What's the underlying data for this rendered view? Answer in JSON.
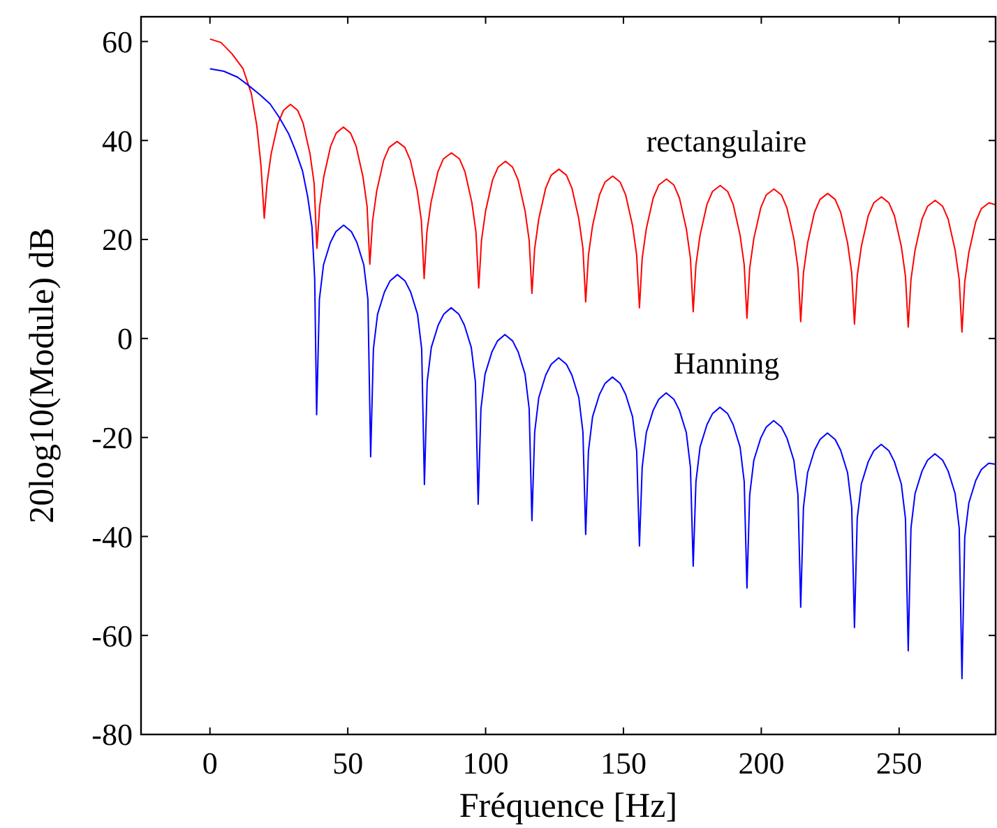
{
  "chart_data": {
    "type": "line",
    "xlabel": "Fréquence [Hz]",
    "ylabel": "20log10(Module) dB",
    "xlim": [
      -25,
      285
    ],
    "xticks": [
      0,
      50,
      100,
      150,
      200,
      250
    ],
    "ylim": [
      -80,
      65
    ],
    "yticks": [
      -80,
      -60,
      -40,
      -20,
      0,
      20,
      40,
      60
    ],
    "grid": false,
    "series": [
      {
        "name": "rectangulaire",
        "color": "#ff0000",
        "x": [
          0,
          4,
          8,
          12,
          15,
          17,
          18.5,
          19.7,
          20.7,
          22.2,
          24.7,
          26.7,
          29.2,
          31.8,
          33.8,
          36.3,
          37.8,
          38.8,
          39.8,
          41.3,
          43.8,
          45.8,
          48.4,
          51,
          53,
          55.5,
          57,
          58,
          59,
          60.5,
          63,
          65,
          67.9,
          70.7,
          72.7,
          75.2,
          76.7,
          77.7,
          78.7,
          80.2,
          82.7,
          84.7,
          87.6,
          90.5,
          92.5,
          95,
          96.5,
          97.5,
          98.5,
          100,
          102.5,
          104.5,
          107.2,
          109.8,
          111.8,
          114.3,
          115.8,
          116.8,
          117.8,
          119.3,
          121.8,
          123.8,
          126.6,
          129.3,
          131.3,
          133.8,
          135.3,
          136.3,
          137.3,
          138.8,
          141.3,
          143.3,
          146.1,
          148.8,
          150.8,
          153.3,
          154.8,
          155.8,
          156.8,
          158.3,
          160.8,
          162.8,
          165.6,
          168.3,
          170.3,
          172.8,
          174.3,
          175.3,
          176.3,
          177.8,
          180.3,
          182.3,
          185.1,
          187.8,
          189.8,
          192.3,
          193.8,
          194.8,
          195.8,
          197.3,
          199.8,
          201.8,
          204.6,
          207.3,
          209.3,
          211.8,
          213.3,
          214.3,
          215.3,
          216.8,
          219.3,
          221.3,
          224.1,
          226.8,
          228.8,
          231.3,
          232.8,
          233.8,
          234.8,
          236.3,
          238.8,
          240.8,
          243.6,
          246.3,
          248.3,
          250.8,
          252.3,
          253.3,
          254.3,
          255.8,
          258.3,
          260.3,
          263.1,
          265.8,
          267.8,
          270.3,
          271.8,
          272.8,
          273.8,
          275.3,
          277.8,
          279.8,
          282.6,
          285
        ],
        "values": [
          60.5,
          59.8,
          57.5,
          54.5,
          49.5,
          43,
          35,
          24.3,
          31.3,
          37.3,
          43.5,
          46.1,
          47.3,
          46.1,
          43.5,
          37.3,
          31.3,
          18.2,
          26.7,
          32.7,
          38.9,
          41.5,
          42.7,
          41.5,
          38.9,
          32.7,
          26.7,
          15,
          23.8,
          29.8,
          36,
          38.6,
          39.8,
          38.6,
          36,
          29.8,
          23.8,
          12.1,
          21.5,
          27.5,
          33.7,
          36.3,
          37.5,
          36.3,
          33.7,
          27.5,
          21.5,
          10.2,
          19.8,
          25.8,
          32,
          34.6,
          35.8,
          34.6,
          32,
          25.8,
          19.8,
          9.1,
          18.2,
          24.2,
          30.4,
          33,
          34.2,
          33,
          30.4,
          24.2,
          18.2,
          7.4,
          16.8,
          22.8,
          29,
          31.6,
          32.8,
          31.6,
          29,
          22.8,
          16.8,
          6.2,
          16.2,
          22.2,
          28.4,
          31,
          32.2,
          31,
          28.4,
          22.2,
          16.2,
          5.4,
          14.9,
          20.9,
          27.1,
          29.7,
          30.9,
          29.7,
          27.1,
          20.9,
          14.9,
          4.1,
          14.2,
          20.2,
          26.4,
          29,
          30.2,
          29,
          26.4,
          20.2,
          14.2,
          3.4,
          13.3,
          19.3,
          25.5,
          28.1,
          29.3,
          28.1,
          25.5,
          19.3,
          13.3,
          2.9,
          12.6,
          18.6,
          24.8,
          27.4,
          28.6,
          27.4,
          24.8,
          18.6,
          12.6,
          2.3,
          11.9,
          17.9,
          24.1,
          26.7,
          27.9,
          26.7,
          24.1,
          17.9,
          11.9,
          1.3,
          11.4,
          17.4,
          23.6,
          26.2,
          27.4,
          27
        ]
      },
      {
        "name": "Hanning",
        "color": "#0000ff",
        "x": [
          0,
          5,
          10,
          13.6,
          18,
          21.8,
          25,
          28.6,
          31,
          33.6,
          35.5,
          37,
          38,
          38.7,
          39.7,
          41.2,
          43.7,
          45.7,
          48.5,
          51.3,
          53.3,
          55.8,
          57.3,
          58.3,
          59.3,
          60.8,
          63.3,
          65.3,
          68,
          70.8,
          72.8,
          75.3,
          76.8,
          77.8,
          78.8,
          80.3,
          82.8,
          84.8,
          87.5,
          90.3,
          92.3,
          94.8,
          96.3,
          97.3,
          98.3,
          99.8,
          102.3,
          104.3,
          107,
          109.8,
          111.8,
          114.3,
          115.8,
          116.8,
          117.8,
          119.3,
          121.8,
          123.8,
          126.5,
          129.3,
          131.3,
          133.8,
          135.3,
          136.3,
          137.3,
          138.8,
          141.3,
          143.3,
          146,
          148.8,
          150.8,
          153.3,
          154.8,
          155.8,
          156.8,
          158.3,
          160.8,
          162.8,
          165.5,
          168.3,
          170.3,
          172.8,
          174.3,
          175.3,
          176.3,
          177.8,
          180.3,
          182.3,
          185,
          187.8,
          189.8,
          192.3,
          193.8,
          194.8,
          195.8,
          197.3,
          199.8,
          201.8,
          204.5,
          207.3,
          209.3,
          211.8,
          213.3,
          214.3,
          215.3,
          216.8,
          219.3,
          221.3,
          224,
          226.8,
          228.8,
          231.3,
          232.8,
          233.8,
          234.8,
          236.3,
          238.8,
          240.8,
          243.5,
          246.3,
          248.3,
          250.8,
          252.3,
          253.3,
          254.3,
          255.8,
          258.3,
          260.3,
          263,
          265.8,
          267.8,
          270.3,
          271.8,
          272.8,
          273.8,
          275.3,
          277.8,
          279.8,
          282.5,
          285
        ],
        "values": [
          54.5,
          54,
          52.8,
          51.3,
          49.3,
          47.4,
          44.8,
          41.3,
          38,
          33.8,
          28.5,
          22.6,
          12,
          -15.4,
          7.9,
          14.9,
          19.4,
          21.6,
          22.9,
          21.6,
          19.4,
          14.9,
          7.9,
          -23.9,
          -2.1,
          4.9,
          9.4,
          11.6,
          12.9,
          11.6,
          9.4,
          4.9,
          -2.1,
          -29.5,
          -8.8,
          -1.8,
          2.7,
          4.9,
          6.2,
          4.9,
          2.7,
          -1.8,
          -8.8,
          -33.5,
          -14.2,
          -7.2,
          -2.7,
          -0.5,
          0.8,
          -0.5,
          -2.7,
          -7.2,
          -14.2,
          -36.8,
          -18.9,
          -11.9,
          -7.4,
          -5.2,
          -3.9,
          -5.2,
          -7.4,
          -11.9,
          -18.9,
          -39.6,
          -22.8,
          -15.8,
          -11.3,
          -9.1,
          -7.8,
          -9.1,
          -11.3,
          -15.8,
          -22.8,
          -41.9,
          -26,
          -19,
          -14.5,
          -12.3,
          -11,
          -12.3,
          -14.5,
          -19,
          -26,
          -46,
          -28.9,
          -21.9,
          -17.4,
          -15.2,
          -13.9,
          -15.2,
          -17.4,
          -21.9,
          -28.9,
          -50.4,
          -31.6,
          -24.6,
          -20.1,
          -17.9,
          -16.6,
          -17.9,
          -20.1,
          -24.6,
          -31.6,
          -54.3,
          -34.1,
          -27.1,
          -22.6,
          -20.4,
          -19.1,
          -20.4,
          -22.6,
          -27.1,
          -34.1,
          -58.4,
          -36.4,
          -29.4,
          -24.9,
          -22.7,
          -21.4,
          -22.7,
          -24.9,
          -29.4,
          -36.4,
          -63.1,
          -38.3,
          -31.3,
          -26.8,
          -24.6,
          -23.3,
          -24.6,
          -26.8,
          -31.3,
          -38.3,
          -68.7,
          -40.2,
          -33.2,
          -28.7,
          -26.5,
          -25.2,
          -25.4
        ]
      }
    ]
  }
}
